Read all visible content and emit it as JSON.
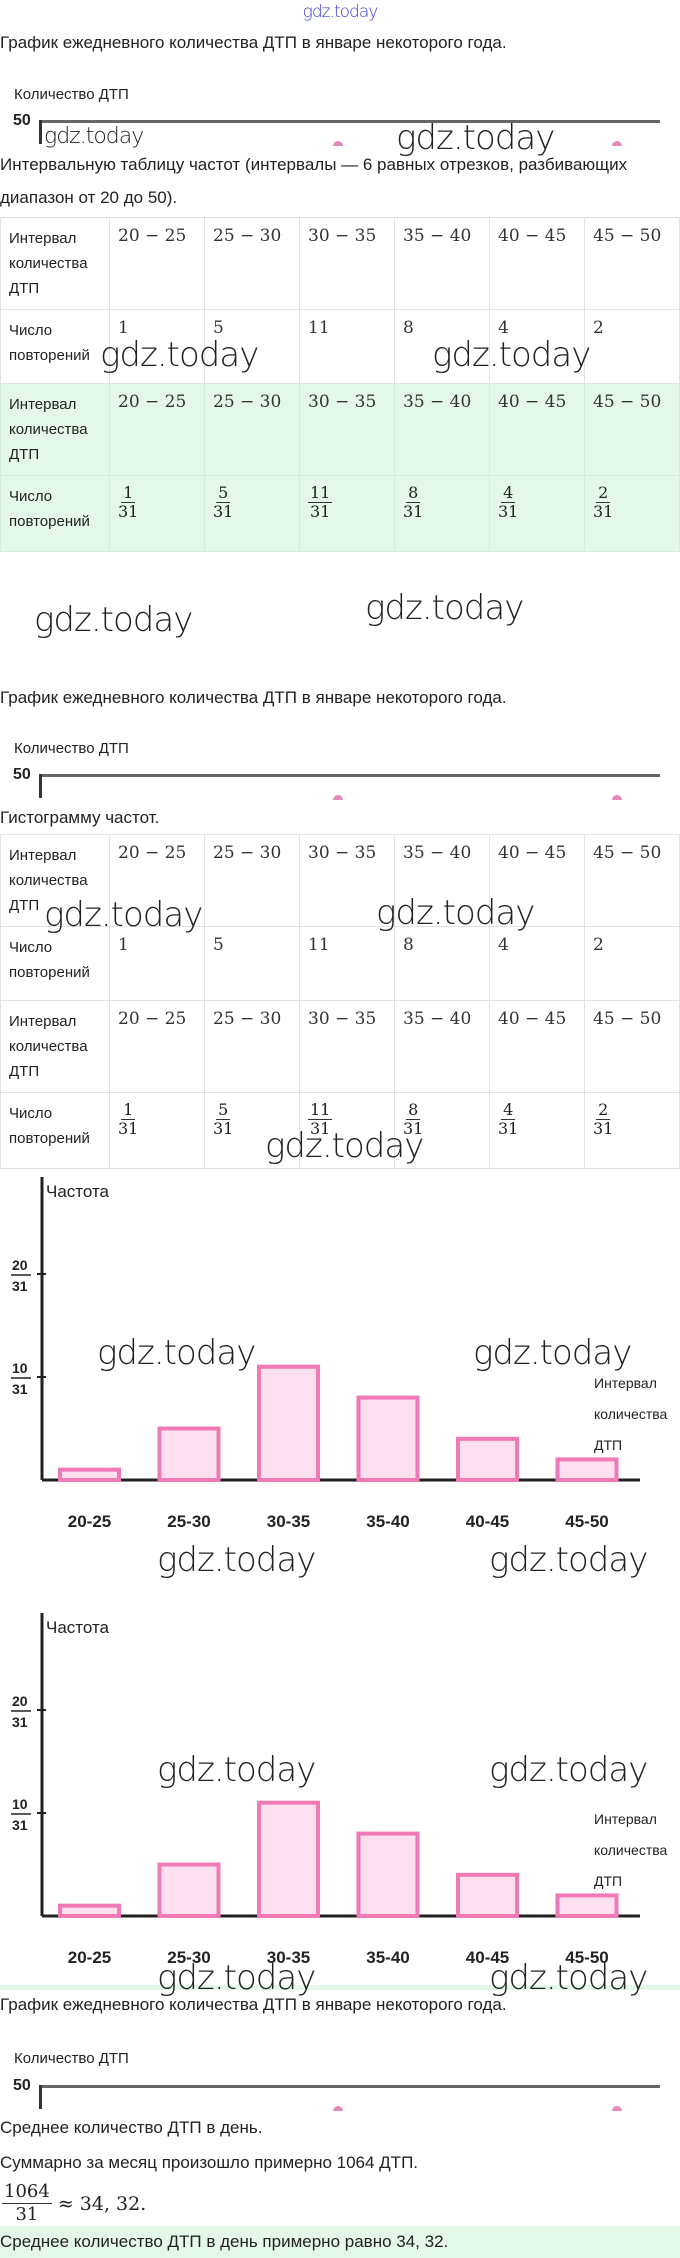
{
  "header": {
    "watermark": "gdz.today"
  },
  "watermark": "gdz.today",
  "graph_section": {
    "title": "График ежедневного количества ДТП в январе некоторого года.",
    "y_label": "Количество ДТП",
    "y_tick": "50"
  },
  "task1": {
    "line1": "Интервальную таблицу частот (интервалы — 6 равных отрезков, разбивающих",
    "line2": "диапазон от 20 до 50)."
  },
  "task2": {
    "title": "Гистограмму частот."
  },
  "task3": {
    "title": "Среднее количество ДТП в день.",
    "sum_text": "Суммарно за месяц произошло примерно 1064 ДТП.",
    "frac_num": "1064",
    "frac_den": "31",
    "approx": "≈ 34, 32.",
    "answer": "Среднее количество ДТП в день примерно равно 34, 32."
  },
  "table": {
    "row_interval": "Интервал количества ДТП",
    "row_count": "Число повторений",
    "intervals": [
      "20 − 25",
      "25 − 30",
      "30 − 35",
      "35 − 40",
      "40 − 45",
      "45 − 50"
    ],
    "counts": [
      "1",
      "5",
      "11",
      "8",
      "4",
      "2"
    ],
    "freq_den": "31"
  },
  "colors": {
    "bar_stroke": "#f07ab5",
    "bar_fill": "#fde0ef",
    "highlight": "#e4f8ea"
  },
  "chart_data": {
    "type": "bar",
    "title": "",
    "ylabel": "Частота",
    "xlabel_lines": [
      "Интервал",
      "количества",
      "ДТП"
    ],
    "categories": [
      "20-25",
      "25-30",
      "30-35",
      "35-40",
      "40-45",
      "45-50"
    ],
    "values": [
      0.0323,
      0.1613,
      0.3548,
      0.2581,
      0.129,
      0.0645
    ],
    "y_ticks": [
      {
        "num": "10",
        "den": "31",
        "value": 0.3226
      },
      {
        "num": "20",
        "den": "31",
        "value": 0.6452
      }
    ],
    "ylim": [
      0,
      0.95
    ]
  }
}
